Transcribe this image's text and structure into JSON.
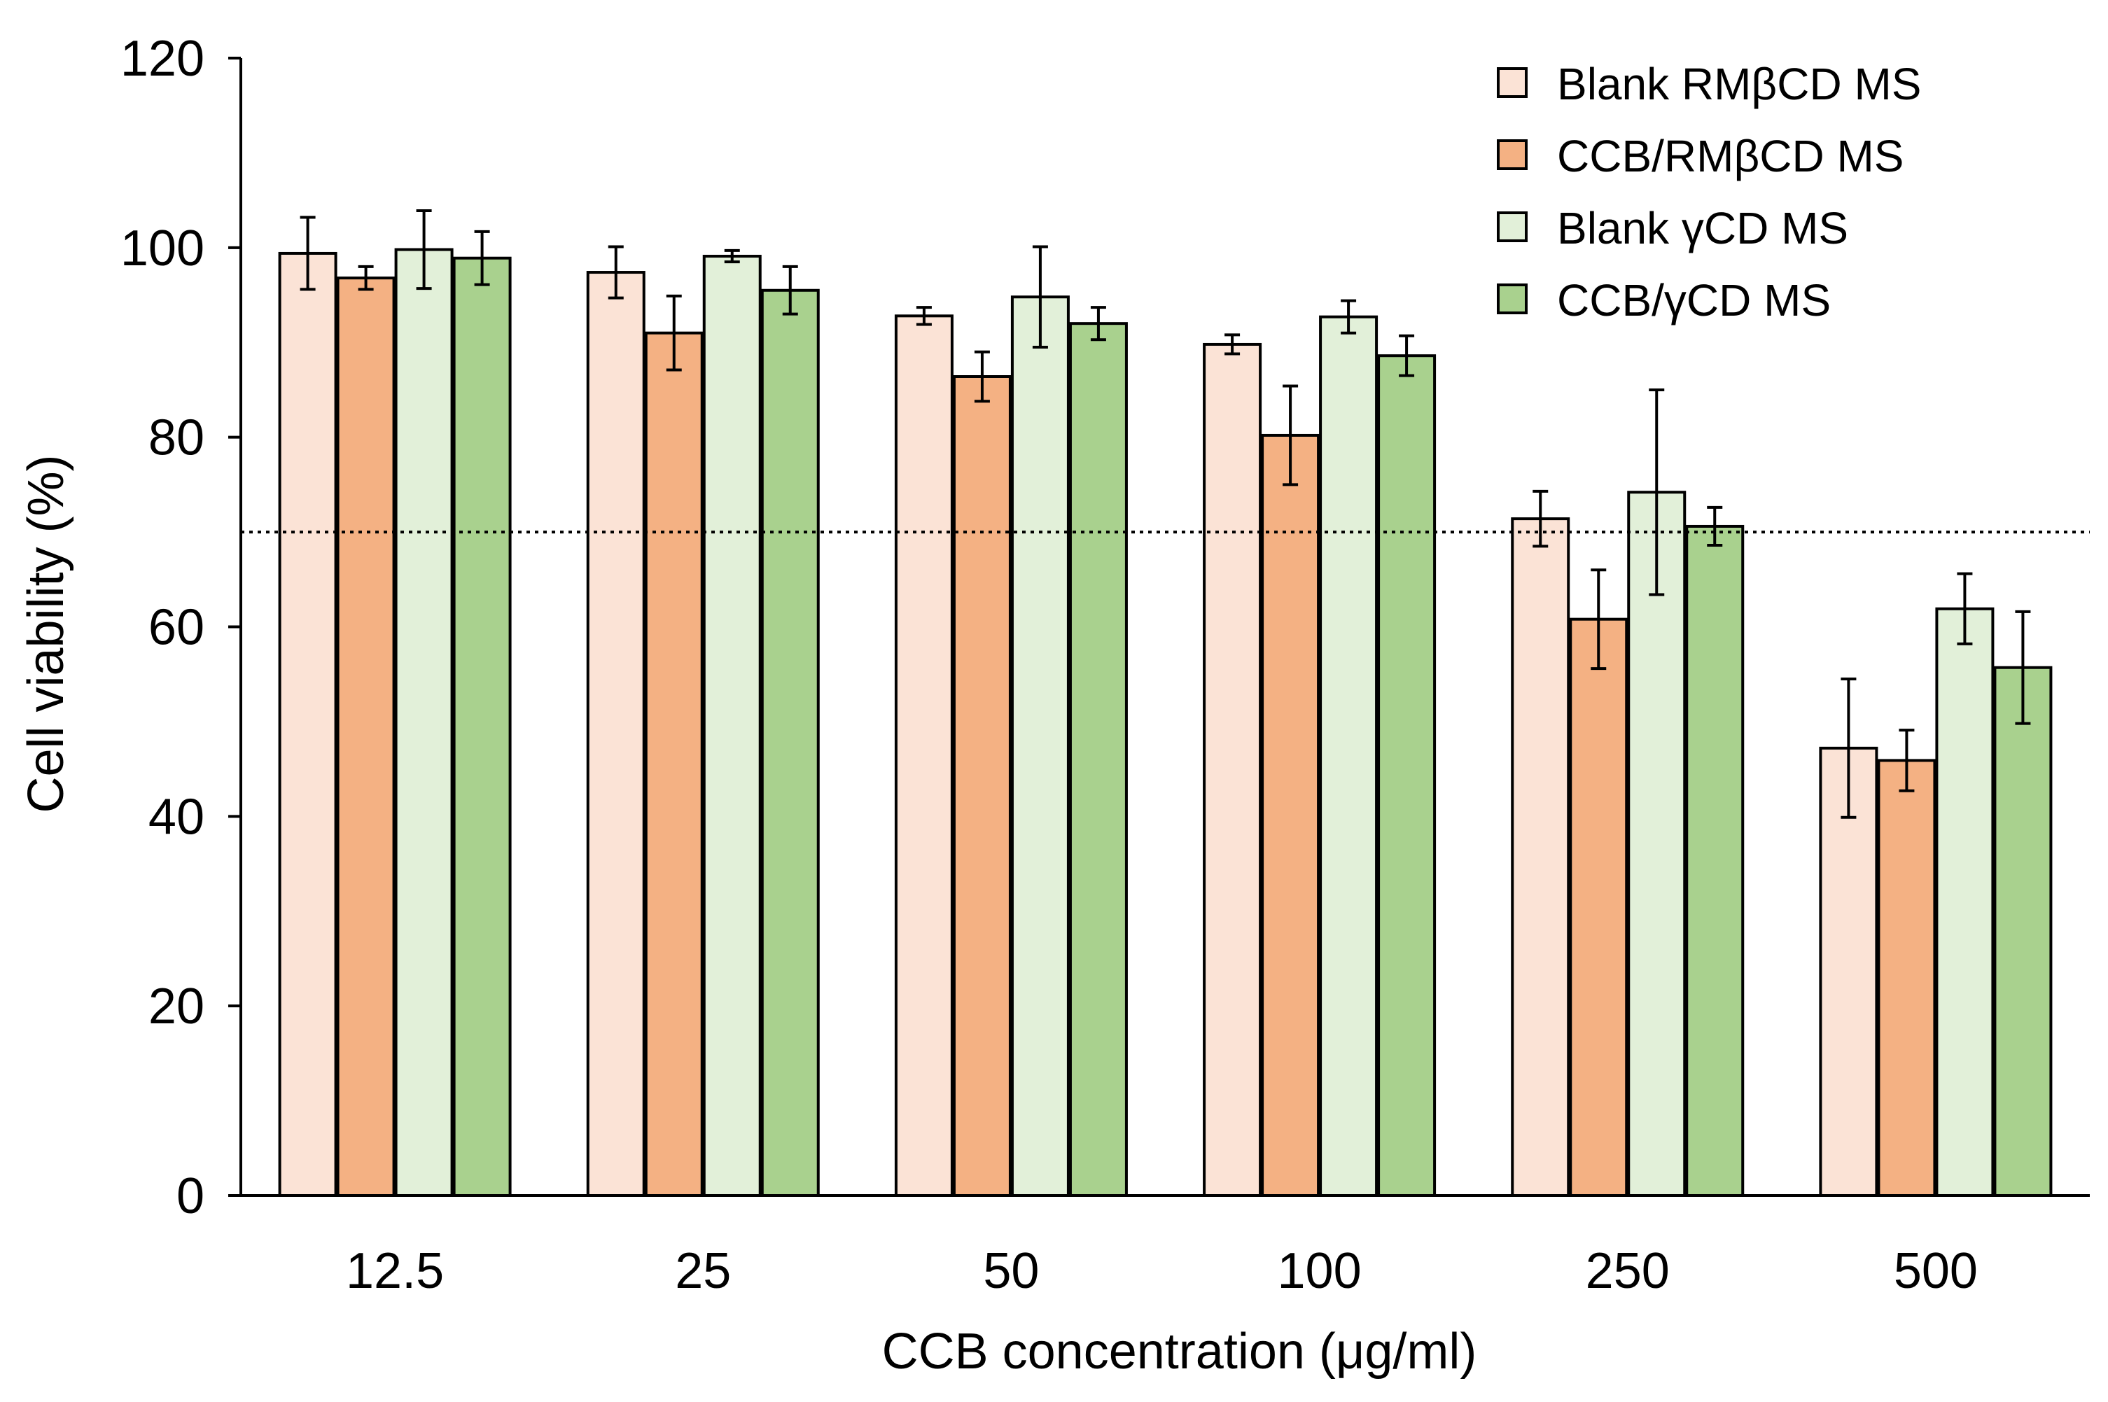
{
  "chart_data": {
    "type": "bar",
    "title": "",
    "xlabel": "CCB concentration (μg/ml)",
    "ylabel": "Cell viability (%)",
    "ylim": [
      0,
      120
    ],
    "yticks": [
      "0",
      "20",
      "40",
      "60",
      "80",
      "100",
      "120"
    ],
    "categories": [
      "12.5",
      "25",
      "50",
      "100",
      "250",
      "500"
    ],
    "threshold": 70,
    "legend_position": "top-right",
    "series": [
      {
        "name": "Blank RMβCD MS",
        "color": "#FBE3D6",
        "values": [
          99.4,
          97.4,
          92.8,
          89.8,
          71.4,
          47.2
        ],
        "errors": [
          3.8,
          2.7,
          0.9,
          1.0,
          2.9,
          7.3
        ]
      },
      {
        "name": "CCB/RMβCD MS",
        "color": "#F4B183",
        "values": [
          96.8,
          91.0,
          86.4,
          80.2,
          60.8,
          45.9
        ],
        "errors": [
          1.2,
          3.9,
          2.6,
          5.2,
          5.2,
          3.2
        ]
      },
      {
        "name": "Blank γCD MS",
        "color": "#E2F0D9",
        "values": [
          99.8,
          99.1,
          94.8,
          92.7,
          74.2,
          61.9
        ],
        "errors": [
          4.1,
          0.6,
          5.3,
          1.7,
          10.8,
          3.7
        ]
      },
      {
        "name": "CCB/γCD MS",
        "color": "#A9D18E",
        "values": [
          98.9,
          95.5,
          92.0,
          88.6,
          70.6,
          55.7
        ],
        "errors": [
          2.8,
          2.5,
          1.7,
          2.1,
          2.0,
          5.9
        ]
      }
    ]
  }
}
